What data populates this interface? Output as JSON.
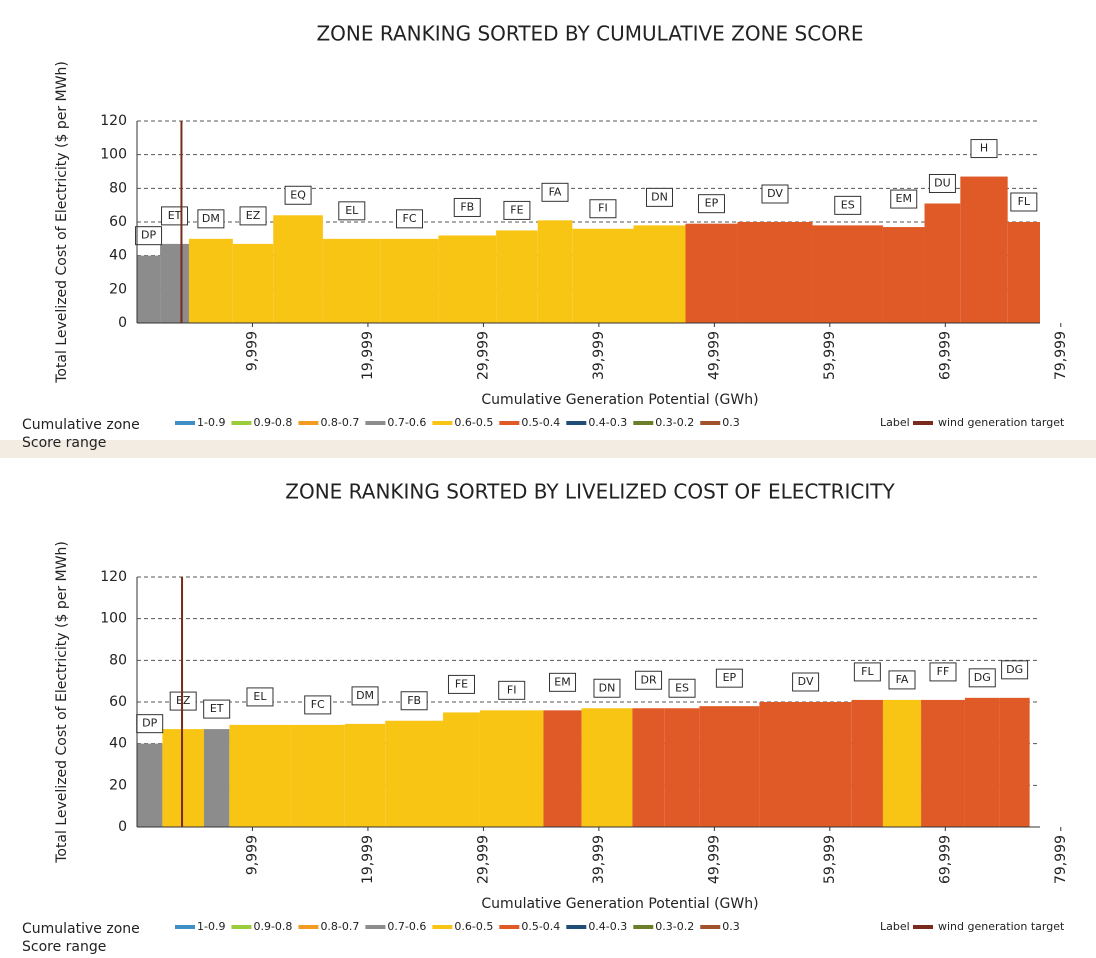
{
  "chart_data": [
    {
      "type": "bar",
      "title": "ZONE RANKING SORTED BY CUMULATIVE ZONE SCORE",
      "x_label": "Cumulative Generation Potential (GWh)",
      "y_label": "Total Levelized Cost of Electricity ($ per MWh)",
      "categories": [
        "DP",
        "ET",
        "DM",
        "EZ",
        "EQ",
        "EL",
        "FC",
        "FB",
        "FE",
        "FA",
        "FI",
        "DN",
        "EP",
        "DV",
        "ES",
        "EM",
        "DU",
        "H",
        "FL"
      ],
      "starts": [
        0,
        2000,
        4500,
        8300,
        11800,
        16100,
        21100,
        26100,
        31100,
        34700,
        37700,
        43000,
        47500,
        52000,
        58500,
        64600,
        68200,
        71300,
        75400
      ],
      "ends": [
        2000,
        4500,
        8300,
        11800,
        16100,
        21100,
        26100,
        31100,
        34700,
        37700,
        43000,
        47500,
        52000,
        58500,
        64600,
        68200,
        71300,
        75400,
        78200
      ],
      "values": [
        40,
        47,
        50,
        47,
        64,
        50,
        50,
        52,
        55,
        61,
        56,
        58,
        59,
        60,
        58,
        57,
        71,
        87,
        60
      ],
      "colors": [
        "#8c8c8c",
        "#8c8c8c",
        "#f9c515",
        "#f9c515",
        "#f9c515",
        "#f9c515",
        "#f9c515",
        "#f9c515",
        "#f9c515",
        "#f9c515",
        "#f9c515",
        "#f9c515",
        "#e05a28",
        "#e05a28",
        "#e05a28",
        "#e05a28",
        "#e05a28",
        "#e05a28",
        "#e05a28"
      ],
      "xlim": [
        0,
        78200
      ],
      "ylim": [
        0,
        120
      ],
      "yticks": [
        0,
        20,
        40,
        60,
        80,
        100,
        120
      ],
      "xticks": [
        {
          "value": 9999,
          "label": "9,999"
        },
        {
          "value": 19999,
          "label": "19,999"
        },
        {
          "value": 29999,
          "label": "29,999"
        },
        {
          "value": 39999,
          "label": "39,999"
        },
        {
          "value": 49999,
          "label": "49,999"
        },
        {
          "value": 59999,
          "label": "59,999"
        },
        {
          "value": 69999,
          "label": "69,999"
        },
        {
          "value": 79999,
          "label": "79,999"
        }
      ],
      "grid": true,
      "legend_title": [
        "Cumulative zone",
        "Score range"
      ],
      "legend": [
        {
          "name": "1-0.9",
          "color": "#3d8fc6"
        },
        {
          "name": "0.9-0.8",
          "color": "#9ccb3b"
        },
        {
          "name": "0.8-0.7",
          "color": "#f49b23"
        },
        {
          "name": "0.7-0.6",
          "color": "#8c8c8c"
        },
        {
          "name": "0.6-0.5",
          "color": "#f9c515"
        },
        {
          "name": "0.5-0.4",
          "color": "#e05a28"
        },
        {
          "name": "0.4-0.3",
          "color": "#1f4e79"
        },
        {
          "name": "0.3-0.2",
          "color": "#6b7f2a"
        },
        {
          "name": "0.3",
          "color": "#a0522d"
        }
      ],
      "label_legend": "Label",
      "target": {
        "name": "wind generation target",
        "x": 3850,
        "color": "#7a2a1a"
      }
    },
    {
      "type": "bar",
      "title": "ZONE RANKING SORTED BY LIVELIZED COST OF ELECTRICITY",
      "x_label": "Cumulative Generation Potential (GWh)",
      "y_label": "Total Levelized Cost of Electricity ($ per MWh)",
      "categories": [
        "DP",
        "EZ",
        "ET",
        "EL",
        "FC",
        "DM",
        "FB",
        "FE",
        "FI",
        "EM",
        "DN",
        "DR",
        "ES",
        "EP",
        "DV",
        "FL",
        "FA",
        "FF",
        "DG",
        "DG"
      ],
      "starts": [
        0,
        2200,
        5800,
        8000,
        13300,
        18000,
        21500,
        26500,
        29700,
        35200,
        38500,
        42900,
        45700,
        48700,
        53900,
        61900,
        64600,
        67900,
        71700,
        74700
      ],
      "ends": [
        2200,
        5800,
        8000,
        13300,
        18000,
        21500,
        26500,
        29700,
        35200,
        38500,
        42900,
        45700,
        48700,
        53900,
        61900,
        64600,
        67900,
        71700,
        74700,
        77300
      ],
      "values": [
        40,
        47,
        47,
        49,
        49,
        49.5,
        51,
        55,
        56,
        56,
        57,
        57,
        57,
        58,
        60,
        61,
        61,
        61,
        62,
        62
      ],
      "colors": [
        "#8c8c8c",
        "#f9c515",
        "#8c8c8c",
        "#f9c515",
        "#f9c515",
        "#f9c515",
        "#f9c515",
        "#f9c515",
        "#f9c515",
        "#e05a28",
        "#f9c515",
        "#e05a28",
        "#e05a28",
        "#e05a28",
        "#e05a28",
        "#e05a28",
        "#f9c515",
        "#e05a28",
        "#e05a28",
        "#e05a28"
      ],
      "xlim": [
        0,
        78200
      ],
      "ylim": [
        0,
        120
      ],
      "yticks": [
        0,
        20,
        40,
        60,
        80,
        100,
        120
      ],
      "xticks": [
        {
          "value": 9999,
          "label": "9,999"
        },
        {
          "value": 19999,
          "label": "19,999"
        },
        {
          "value": 29999,
          "label": "29,999"
        },
        {
          "value": 39999,
          "label": "39,999"
        },
        {
          "value": 49999,
          "label": "49,999"
        },
        {
          "value": 59999,
          "label": "59,999"
        },
        {
          "value": 69999,
          "label": "69,999"
        },
        {
          "value": 79999,
          "label": "79,999"
        }
      ],
      "grid": true,
      "legend_title": [
        "Cumulative zone",
        "Score range"
      ],
      "legend": [
        {
          "name": "1-0.9",
          "color": "#3d8fc6"
        },
        {
          "name": "0.9-0.8",
          "color": "#9ccb3b"
        },
        {
          "name": "0.8-0.7",
          "color": "#f49b23"
        },
        {
          "name": "0.7-0.6",
          "color": "#8c8c8c"
        },
        {
          "name": "0.6-0.5",
          "color": "#f9c515"
        },
        {
          "name": "0.5-0.4",
          "color": "#e05a28"
        },
        {
          "name": "0.4-0.3",
          "color": "#1f4e79"
        },
        {
          "name": "0.3-0.2",
          "color": "#6b7f2a"
        },
        {
          "name": "0.3",
          "color": "#a0522d"
        }
      ],
      "label_legend": "Label",
      "target": {
        "name": "wind generation target",
        "x": 3900,
        "color": "#7a2a1a"
      }
    }
  ]
}
